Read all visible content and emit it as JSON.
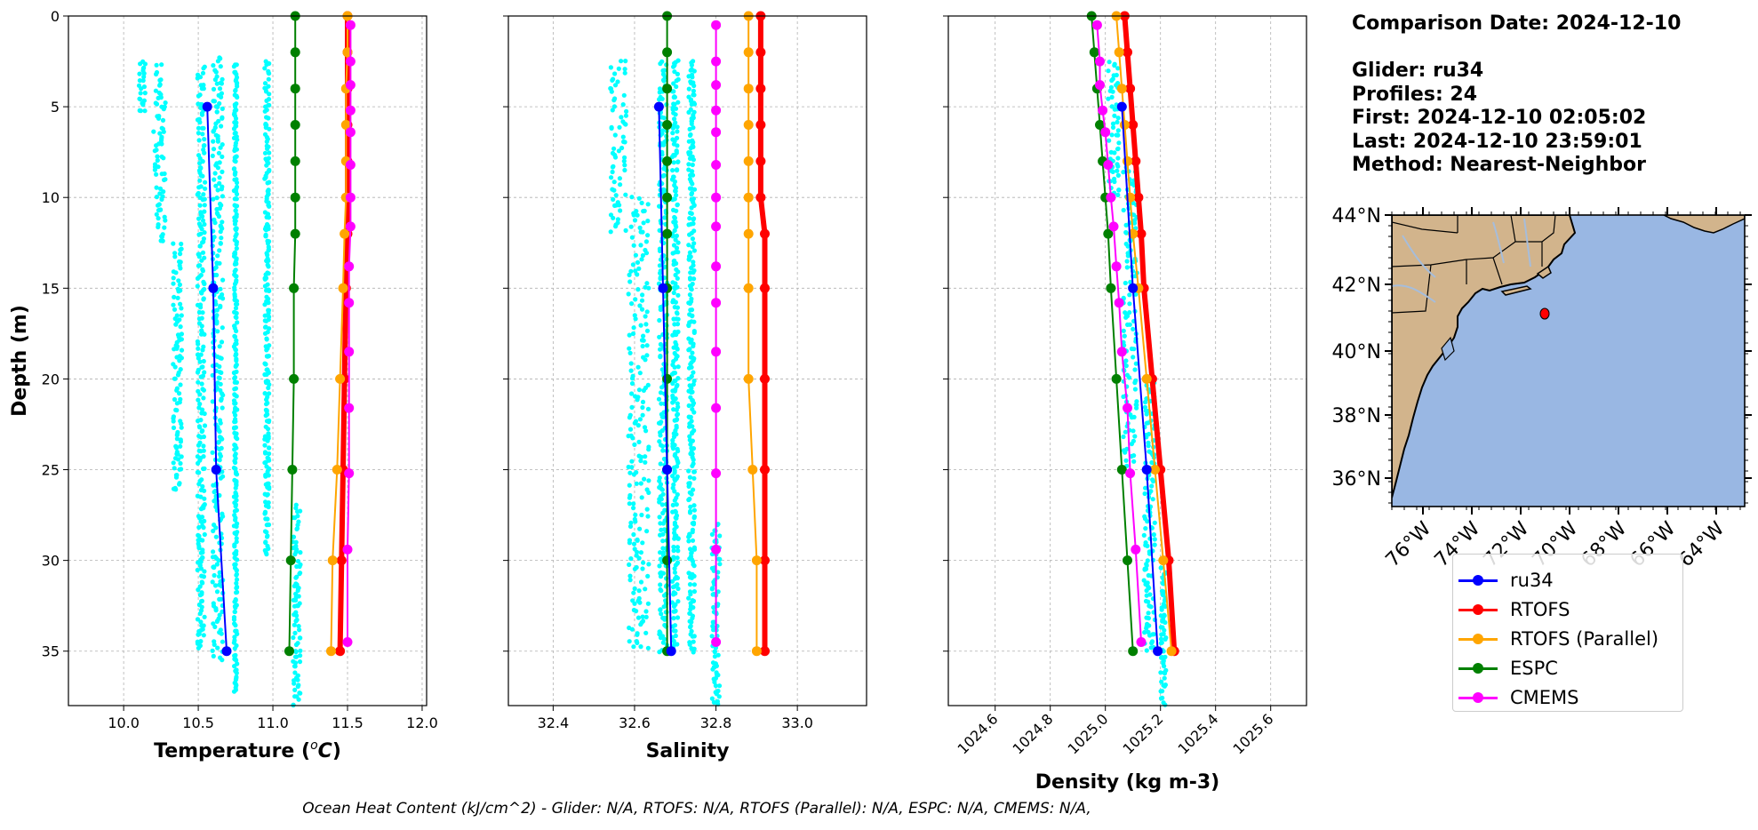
{
  "info": {
    "comparison": "Comparison Date: 2024-12-10",
    "glider": "Glider: ru34",
    "profiles": "Profiles: 24",
    "first": "First: 2024-12-10 02:05:02",
    "last": "Last: 2024-12-10 23:59:01",
    "method": "Method: Nearest-Neighbor"
  },
  "caption": "Ocean Heat Content (kJ/cm^2) - Glider: N/A,  RTOFS: N/A,  RTOFS (Parallel): N/A,  ESPC: N/A,  CMEMS: N/A,",
  "colors": {
    "ru34": "#0000ff",
    "RTOFS": "#ff0000",
    "RTOFS (Parallel)": "#ffa500",
    "ESPC": "#008000",
    "CMEMS": "#ff00ff",
    "glider_raw": "#00ffff",
    "land": "#d2b48c",
    "ocean": "#99b7e3",
    "rivers": "#a6bddb"
  },
  "legend": [
    {
      "label": "ru34",
      "color": "#0000ff"
    },
    {
      "label": "RTOFS",
      "color": "#ff0000"
    },
    {
      "label": "RTOFS (Parallel)",
      "color": "#ffa500"
    },
    {
      "label": "ESPC",
      "color": "#008000"
    },
    {
      "label": "CMEMS",
      "color": "#ff00ff"
    }
  ],
  "chart_data": [
    {
      "type": "line",
      "xlabel": "Temperature (°C)",
      "ylabel": "Depth (m)",
      "xlim": [
        9.63,
        12.03
      ],
      "ylim": [
        38,
        0
      ],
      "xticks": [
        10.0,
        10.5,
        11.0,
        11.5,
        12.0
      ],
      "xtick_labels": [
        "10.0",
        "10.5",
        "11.0",
        "11.5",
        "12.0"
      ],
      "yticks": [
        0,
        5,
        10,
        15,
        20,
        25,
        30,
        35
      ],
      "grid": true,
      "raw_columns": [
        {
          "x": 10.12,
          "dx": 0.05,
          "top": 2.6,
          "bottom": 5.5
        },
        {
          "x": 10.24,
          "dx": 0.08,
          "top": 2.8,
          "bottom": 12.5
        },
        {
          "x": 10.36,
          "dx": 0.06,
          "top": 12.5,
          "bottom": 26.3
        },
        {
          "x": 10.52,
          "dx": 0.05,
          "top": 2.8,
          "bottom": 35.0
        },
        {
          "x": 10.63,
          "dx": 0.07,
          "top": 2.4,
          "bottom": 35.5
        },
        {
          "x": 10.75,
          "dx": 0.02,
          "top": 2.8,
          "bottom": 37.2
        },
        {
          "x": 10.96,
          "dx": 0.03,
          "top": 2.6,
          "bottom": 29.8
        },
        {
          "x": 11.16,
          "dx": 0.05,
          "top": 27.0,
          "bottom": 38.0
        }
      ],
      "series": [
        {
          "name": "ru34",
          "width": 2,
          "y": [
            5,
            15,
            25,
            35
          ],
          "x": [
            10.56,
            10.6,
            10.62,
            10.69
          ]
        },
        {
          "name": "RTOFS",
          "width": 6,
          "y": [
            0,
            2,
            4,
            6,
            8,
            10,
            12,
            15,
            20,
            25,
            30,
            35
          ],
          "x": [
            11.5,
            11.5,
            11.5,
            11.5,
            11.5,
            11.5,
            11.5,
            11.49,
            11.48,
            11.47,
            11.46,
            11.45
          ]
        },
        {
          "name": "RTOFS (Parallel)",
          "width": 2,
          "y": [
            0,
            2,
            4,
            6,
            8,
            10,
            12,
            15,
            20,
            25,
            30,
            35
          ],
          "x": [
            11.5,
            11.5,
            11.49,
            11.49,
            11.49,
            11.49,
            11.48,
            11.47,
            11.45,
            11.43,
            11.4,
            11.39
          ]
        },
        {
          "name": "ESPC",
          "width": 2,
          "y": [
            0,
            2,
            4,
            6,
            8,
            10,
            12,
            15,
            20,
            25,
            30,
            35
          ],
          "x": [
            11.15,
            11.15,
            11.15,
            11.15,
            11.15,
            11.15,
            11.15,
            11.14,
            11.14,
            11.13,
            11.12,
            11.11
          ]
        },
        {
          "name": "CMEMS",
          "width": 2,
          "y": [
            0.5,
            2.5,
            3.8,
            5.2,
            6.4,
            8.2,
            10,
            11.6,
            13.8,
            15.8,
            18.5,
            21.6,
            25.2,
            29.4,
            34.5
          ],
          "x": [
            11.52,
            11.52,
            11.52,
            11.52,
            11.52,
            11.52,
            11.52,
            11.52,
            11.51,
            11.51,
            11.51,
            11.51,
            11.51,
            11.5,
            11.5
          ]
        }
      ]
    },
    {
      "type": "line",
      "xlabel": "Salinity",
      "ylabel": "",
      "xlim": [
        32.29,
        33.17
      ],
      "ylim": [
        38,
        0
      ],
      "xticks": [
        32.4,
        32.6,
        32.8,
        33.0
      ],
      "xtick_labels": [
        "32.4",
        "32.6",
        "32.8",
        "33.0"
      ],
      "yticks": [
        0,
        5,
        10,
        15,
        20,
        25,
        30,
        35
      ],
      "grid": true,
      "raw_columns": [
        {
          "x": 32.56,
          "dx": 0.04,
          "top": 2.6,
          "bottom": 12.0
        },
        {
          "x": 32.61,
          "dx": 0.05,
          "top": 10.0,
          "bottom": 35.0
        },
        {
          "x": 32.67,
          "dx": 0.02,
          "top": 2.6,
          "bottom": 35.0
        },
        {
          "x": 32.7,
          "dx": 0.015,
          "top": 2.5,
          "bottom": 35.0
        },
        {
          "x": 32.74,
          "dx": 0.015,
          "top": 2.6,
          "bottom": 35.0
        },
        {
          "x": 32.8,
          "dx": 0.02,
          "top": 28.0,
          "bottom": 38.0
        }
      ],
      "series": [
        {
          "name": "ru34",
          "width": 2,
          "y": [
            5,
            15,
            25,
            35
          ],
          "x": [
            32.66,
            32.67,
            32.68,
            32.69
          ]
        },
        {
          "name": "RTOFS",
          "width": 6,
          "y": [
            0,
            2,
            4,
            6,
            8,
            10,
            12,
            15,
            20,
            25,
            30,
            35
          ],
          "x": [
            32.91,
            32.91,
            32.91,
            32.91,
            32.91,
            32.91,
            32.92,
            32.92,
            32.92,
            32.92,
            32.92,
            32.92
          ]
        },
        {
          "name": "RTOFS (Parallel)",
          "width": 2,
          "y": [
            0,
            2,
            4,
            6,
            8,
            10,
            12,
            15,
            20,
            25,
            30,
            35
          ],
          "x": [
            32.88,
            32.88,
            32.88,
            32.88,
            32.88,
            32.88,
            32.88,
            32.88,
            32.88,
            32.89,
            32.9,
            32.9
          ]
        },
        {
          "name": "ESPC",
          "width": 2,
          "y": [
            0,
            2,
            4,
            6,
            8,
            10,
            12,
            15,
            20,
            25,
            30,
            35
          ],
          "x": [
            32.68,
            32.68,
            32.68,
            32.68,
            32.68,
            32.68,
            32.68,
            32.68,
            32.68,
            32.68,
            32.68,
            32.68
          ]
        },
        {
          "name": "CMEMS",
          "width": 2,
          "y": [
            0.5,
            2.5,
            3.8,
            5.2,
            6.4,
            8.2,
            10,
            11.6,
            13.8,
            15.8,
            18.5,
            21.6,
            25.2,
            29.4,
            34.5
          ],
          "x": [
            32.8,
            32.8,
            32.8,
            32.8,
            32.8,
            32.8,
            32.8,
            32.8,
            32.8,
            32.8,
            32.8,
            32.8,
            32.8,
            32.8,
            32.8
          ]
        }
      ]
    },
    {
      "type": "line",
      "xlabel": "Density (kg m-3)",
      "ylabel": "",
      "xlim": [
        1024.43,
        1025.73
      ],
      "ylim": [
        38,
        0
      ],
      "xticks": [
        1024.6,
        1024.8,
        1025.0,
        1025.2,
        1025.4,
        1025.6
      ],
      "xtick_labels": [
        "1024.6",
        "1024.8",
        "1025.0",
        "1025.2",
        "1025.4",
        "1025.6"
      ],
      "yticks": [
        0,
        5,
        10,
        15,
        20,
        25,
        30,
        35
      ],
      "grid": true,
      "raw_columns": [
        {
          "x": 1025.03,
          "dx": 0.04,
          "top": 2.6,
          "bottom": 10.0
        },
        {
          "x": 1025.09,
          "dx": 0.05,
          "top": 8.0,
          "bottom": 25.0
        },
        {
          "x": 1025.16,
          "dx": 0.04,
          "top": 20.0,
          "bottom": 35.0
        },
        {
          "x": 1025.21,
          "dx": 0.02,
          "top": 30.0,
          "bottom": 38.0
        }
      ],
      "series": [
        {
          "name": "ru34",
          "width": 2,
          "y": [
            5,
            15,
            25,
            35
          ],
          "x": [
            1025.06,
            1025.1,
            1025.15,
            1025.19
          ]
        },
        {
          "name": "RTOFS",
          "width": 6,
          "y": [
            0,
            2,
            4,
            6,
            8,
            10,
            12,
            15,
            20,
            25,
            30,
            35
          ],
          "x": [
            1025.07,
            1025.08,
            1025.09,
            1025.1,
            1025.11,
            1025.12,
            1025.13,
            1025.14,
            1025.17,
            1025.2,
            1025.23,
            1025.25
          ]
        },
        {
          "name": "RTOFS (Parallel)",
          "width": 2,
          "y": [
            0,
            2,
            4,
            6,
            8,
            10,
            12,
            15,
            20,
            25,
            30,
            35
          ],
          "x": [
            1025.04,
            1025.05,
            1025.06,
            1025.07,
            1025.08,
            1025.09,
            1025.1,
            1025.12,
            1025.15,
            1025.18,
            1025.21,
            1025.24
          ]
        },
        {
          "name": "ESPC",
          "width": 2,
          "y": [
            0,
            2,
            4,
            6,
            8,
            10,
            12,
            15,
            20,
            25,
            30,
            35
          ],
          "x": [
            1024.95,
            1024.96,
            1024.97,
            1024.98,
            1024.99,
            1025.0,
            1025.01,
            1025.02,
            1025.04,
            1025.06,
            1025.08,
            1025.1
          ]
        },
        {
          "name": "CMEMS",
          "width": 2,
          "y": [
            0.5,
            2.5,
            3.8,
            5.2,
            6.4,
            8.2,
            10,
            11.6,
            13.8,
            15.8,
            18.5,
            21.6,
            25.2,
            29.4,
            34.5
          ],
          "x": [
            1024.97,
            1024.98,
            1024.98,
            1024.99,
            1025.0,
            1025.01,
            1025.02,
            1025.03,
            1025.04,
            1025.05,
            1025.06,
            1025.08,
            1025.09,
            1025.11,
            1025.13
          ]
        }
      ]
    }
  ],
  "map": {
    "lat_ticks": [
      "44°N",
      "42°N",
      "40°N",
      "38°N",
      "36°N"
    ],
    "lon_ticks": [
      "76°W",
      "74°W",
      "72°W",
      "70°W",
      "68°W",
      "66°W",
      "64°W"
    ],
    "marker_label": "glider location",
    "marker_color": "#ff0000"
  }
}
